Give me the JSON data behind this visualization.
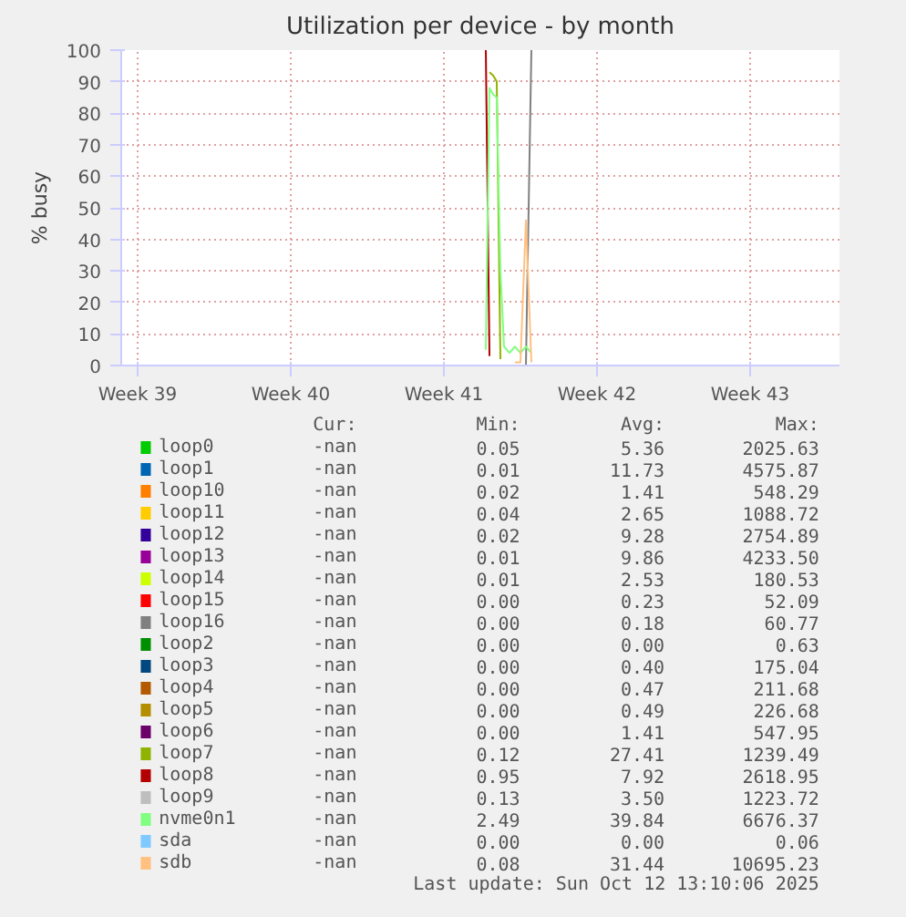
{
  "chart_data": {
    "type": "line",
    "title": "Utilization per device - by month",
    "ylabel": "% busy",
    "x": [
      "2025-10-10T10:00",
      "2025-10-10T14:00",
      "2025-10-10T18:00",
      "2025-10-10T22:00",
      "2025-10-11T02:00",
      "2025-10-11T06:00",
      "2025-10-11T12:00",
      "2025-10-11T18:00",
      "2025-10-12T00:00",
      "2025-10-12T06:00",
      "2025-10-12T12:00"
    ],
    "xlim": [
      "2025-09-23T18:00",
      "2025-10-26T14:00"
    ],
    "ylim": [
      0,
      100
    ],
    "xticks": [
      {
        "value": "2025-09-24T12:00",
        "label": "Week 39"
      },
      {
        "value": "2025-10-01T12:00",
        "label": "Week 40"
      },
      {
        "value": "2025-10-08T12:00",
        "label": "Week 41"
      },
      {
        "value": "2025-10-15T12:00",
        "label": "Week 42"
      },
      {
        "value": "2025-10-22T12:00",
        "label": "Week 43"
      }
    ],
    "yticks": [
      0,
      10,
      20,
      30,
      40,
      50,
      60,
      70,
      80,
      90,
      100
    ],
    "grid": true,
    "legend": "bottom",
    "series": [
      {
        "name": "loop0",
        "color": "#00cc00",
        "values": [
          null,
          null,
          null,
          null,
          null,
          null,
          null,
          null,
          null,
          null,
          null
        ]
      },
      {
        "name": "loop1",
        "color": "#0066b3",
        "values": [
          null,
          null,
          null,
          null,
          null,
          null,
          null,
          null,
          null,
          null,
          null
        ]
      },
      {
        "name": "loop10",
        "color": "#ff8000",
        "values": [
          null,
          null,
          null,
          null,
          null,
          null,
          null,
          null,
          null,
          null,
          null
        ]
      },
      {
        "name": "loop11",
        "color": "#ffcc00",
        "values": [
          null,
          null,
          null,
          null,
          null,
          null,
          null,
          null,
          null,
          null,
          null
        ]
      },
      {
        "name": "loop12",
        "color": "#330099",
        "values": [
          null,
          null,
          null,
          null,
          null,
          null,
          null,
          null,
          null,
          null,
          null
        ]
      },
      {
        "name": "loop13",
        "color": "#990099",
        "values": [
          null,
          null,
          null,
          null,
          null,
          null,
          null,
          null,
          null,
          null,
          null
        ]
      },
      {
        "name": "loop14",
        "color": "#ccff00",
        "values": [
          null,
          null,
          null,
          null,
          null,
          null,
          null,
          null,
          null,
          null,
          null
        ]
      },
      {
        "name": "loop15",
        "color": "#ff0000",
        "values": [
          null,
          null,
          null,
          null,
          null,
          null,
          null,
          null,
          null,
          null,
          null
        ]
      },
      {
        "name": "loop16",
        "color": "#808080",
        "values": [
          null,
          null,
          null,
          null,
          null,
          null,
          null,
          null,
          null,
          0,
          100
        ]
      },
      {
        "name": "loop2",
        "color": "#008f00",
        "values": [
          null,
          null,
          null,
          null,
          null,
          null,
          null,
          null,
          null,
          null,
          null
        ]
      },
      {
        "name": "loop3",
        "color": "#00487d",
        "values": [
          null,
          null,
          null,
          null,
          null,
          null,
          null,
          null,
          null,
          null,
          null
        ]
      },
      {
        "name": "loop4",
        "color": "#b35a00",
        "values": [
          null,
          null,
          null,
          null,
          null,
          null,
          null,
          null,
          null,
          null,
          null
        ]
      },
      {
        "name": "loop5",
        "color": "#b38f00",
        "values": [
          null,
          null,
          null,
          null,
          null,
          null,
          null,
          null,
          null,
          null,
          null
        ]
      },
      {
        "name": "loop6",
        "color": "#6b006b",
        "values": [
          null,
          null,
          null,
          null,
          null,
          null,
          null,
          null,
          null,
          null,
          null
        ]
      },
      {
        "name": "loop7",
        "color": "#8fb300",
        "values": [
          null,
          93,
          92,
          90,
          2,
          null,
          null,
          null,
          null,
          null,
          null
        ]
      },
      {
        "name": "loop8",
        "color": "#b30000",
        "values": [
          100,
          3,
          null,
          null,
          null,
          null,
          null,
          null,
          null,
          null,
          null
        ]
      },
      {
        "name": "loop9",
        "color": "#bebebe",
        "values": [
          null,
          null,
          null,
          null,
          null,
          null,
          null,
          null,
          null,
          null,
          null
        ]
      },
      {
        "name": "nvme0n1",
        "color": "#80ff80",
        "values": [
          5,
          88,
          86,
          85,
          30,
          6,
          4,
          6,
          4,
          6,
          4
        ]
      },
      {
        "name": "sda",
        "color": "#80c9ff",
        "values": [
          null,
          null,
          null,
          null,
          null,
          null,
          null,
          null,
          null,
          null,
          null
        ]
      },
      {
        "name": "sdb",
        "color": "#ffc080",
        "values": [
          null,
          null,
          null,
          null,
          null,
          null,
          null,
          1,
          1,
          46,
          1
        ]
      }
    ],
    "annotations": [
      "Cur:",
      "Min:",
      "Avg:",
      "Max:",
      "-nan",
      "0.05",
      "5.36",
      "2025.63",
      "-nan",
      "0.01",
      "11.73",
      "4575.87",
      "-nan",
      "0.02",
      "1.41",
      "548.29",
      "-nan",
      "0.04",
      "2.65",
      "1088.72",
      "-nan",
      "0.02",
      "9.28",
      "2754.89",
      "-nan",
      "0.01",
      "9.86",
      "4233.50",
      "-nan",
      "0.01",
      "2.53",
      "180.53",
      "-nan",
      "0.00",
      "0.23",
      "52.09",
      "-nan",
      "0.00",
      "0.18",
      "60.77",
      "-nan",
      "0.00",
      "0.00",
      "0.63",
      "-nan",
      "0.00",
      "0.40",
      "175.04",
      "-nan",
      "0.00",
      "0.47",
      "211.68",
      "-nan",
      "0.00",
      "0.49",
      "226.68",
      "-nan",
      "0.00",
      "1.41",
      "547.95",
      "-nan",
      "0.12",
      "27.41",
      "1239.49",
      "-nan",
      "0.95",
      "7.92",
      "2618.95",
      "-nan",
      "0.13",
      "3.50",
      "1223.72",
      "-nan",
      "2.49",
      "39.84",
      "6676.37",
      "-nan",
      "0.00",
      "0.00",
      "0.06",
      "-nan",
      "0.08",
      "31.44",
      "10695.23",
      "Last update: Sun Oct 12 13:10:06 2025"
    ]
  }
}
